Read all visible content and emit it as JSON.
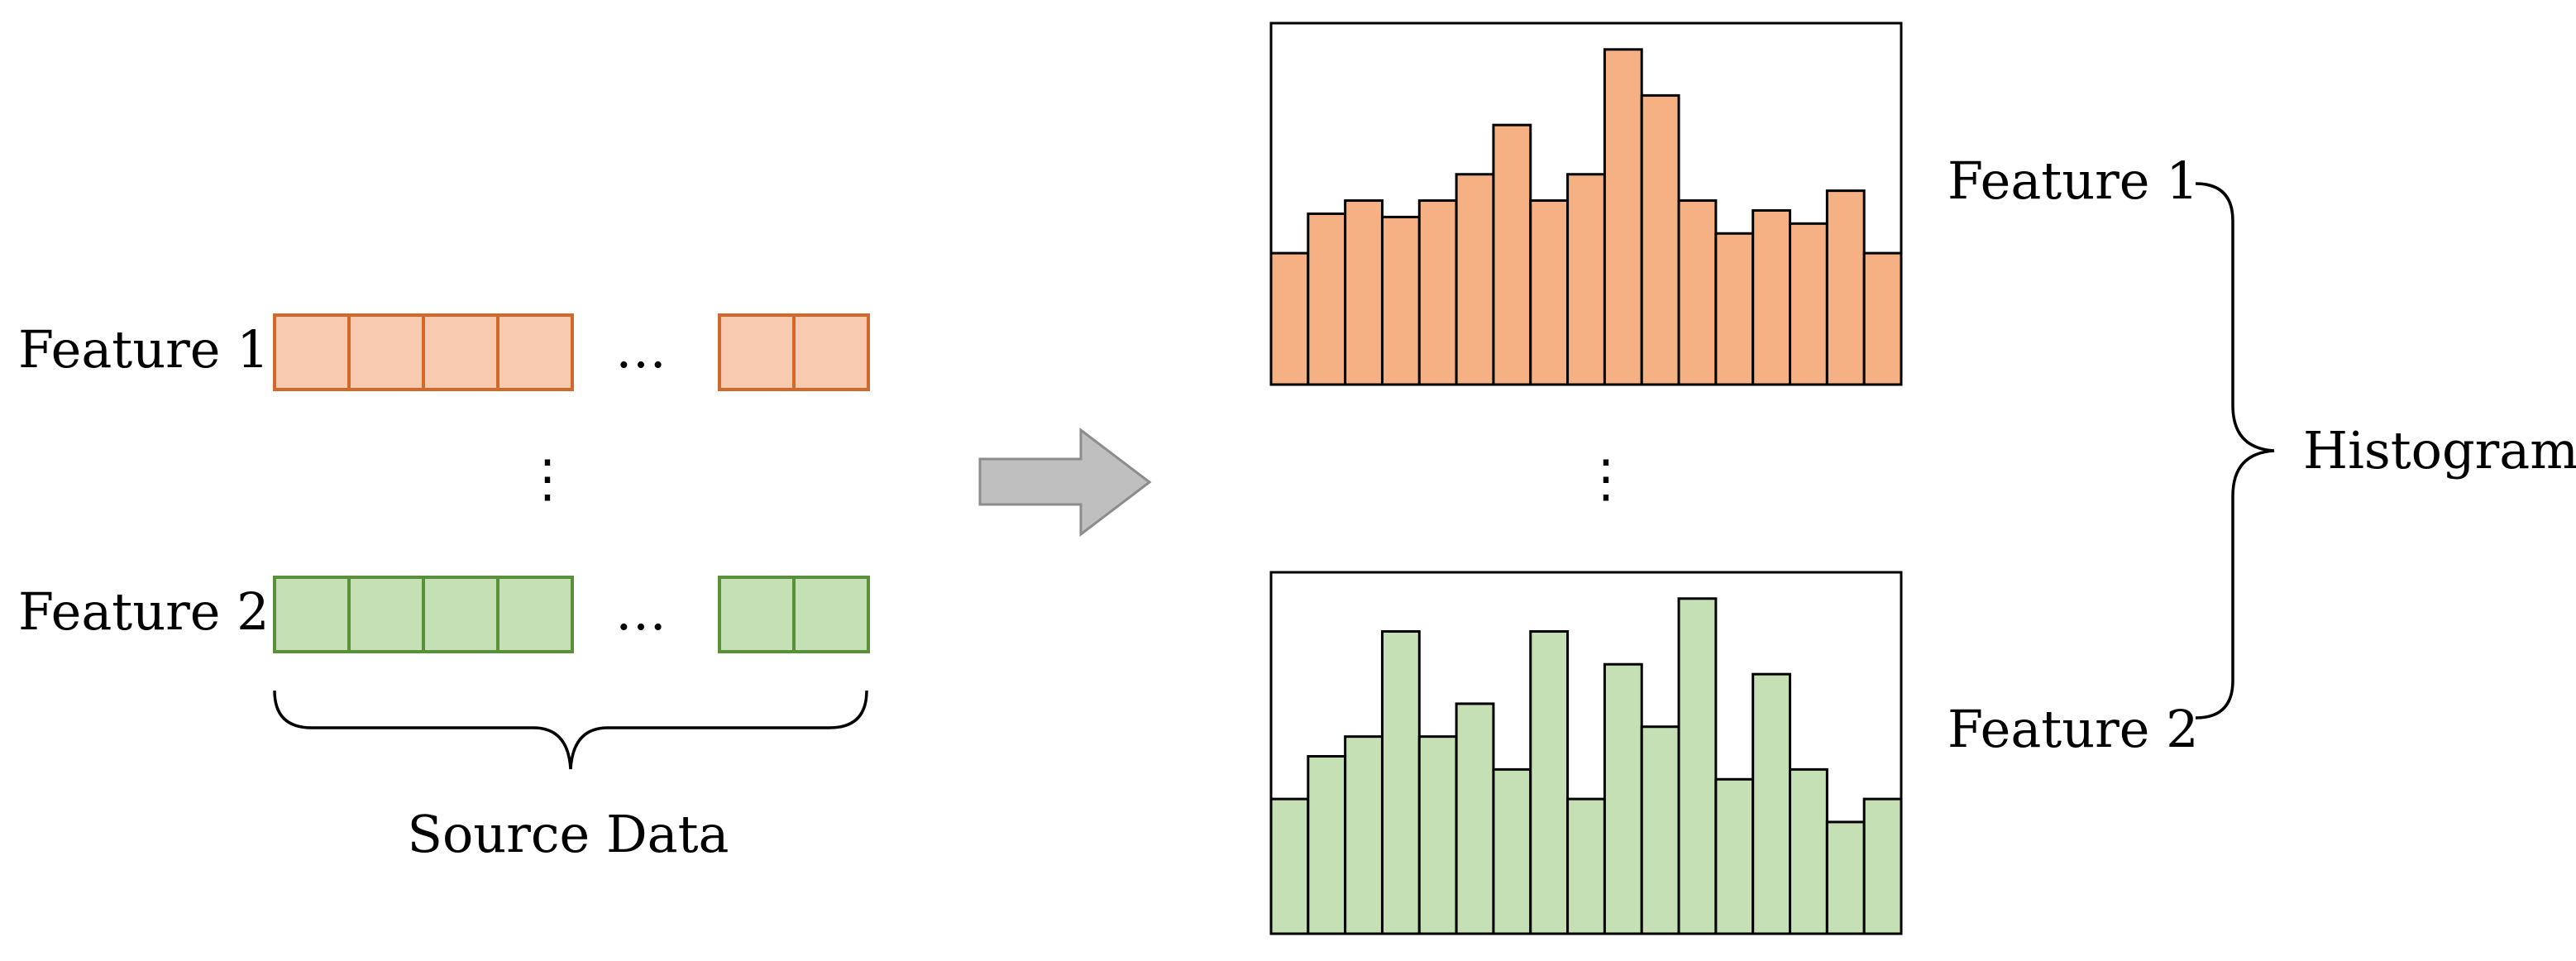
{
  "source": {
    "features": [
      {
        "label": "Feature 1",
        "fill": "#f8cbb0",
        "stroke": "#d2692c"
      },
      {
        "label": "Feature 2",
        "fill": "#c6e0b5",
        "stroke": "#5a8f3c"
      }
    ],
    "ellipsis_h": "…",
    "ellipsis_v": "⋮",
    "brace_label": "Source Data"
  },
  "chart_data": [
    {
      "type": "bar",
      "series": [
        {
          "name": "Feature 1",
          "values": [
            40,
            52,
            56,
            51,
            56,
            64,
            79,
            56,
            64,
            102,
            88,
            56,
            46,
            53,
            49,
            59,
            40
          ]
        }
      ],
      "bar_fill": "#f5b183",
      "ylim": [
        0,
        110
      ]
    },
    {
      "type": "bar",
      "series": [
        {
          "name": "Feature 2",
          "values": [
            41,
            54,
            60,
            92,
            60,
            70,
            50,
            92,
            41,
            82,
            63,
            102,
            47,
            79,
            50,
            34,
            41
          ]
        }
      ],
      "bar_fill": "#c6e0b5",
      "ylim": [
        0,
        110
      ]
    }
  ],
  "histogram": {
    "ellipsis_v": "⋮",
    "label": "Histogram"
  }
}
